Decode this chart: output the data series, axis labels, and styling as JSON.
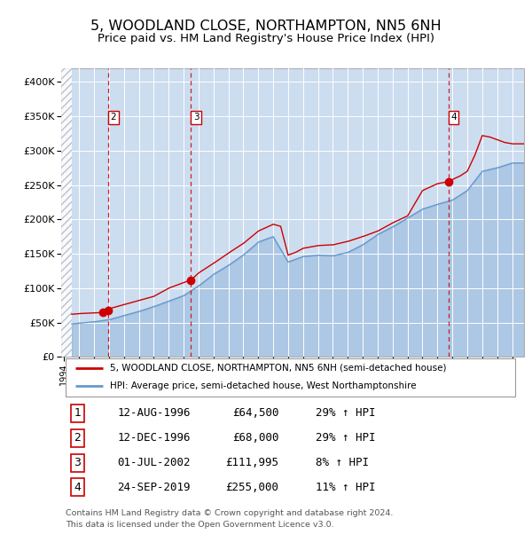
{
  "title": "5, WOODLAND CLOSE, NORTHAMPTON, NN5 6NH",
  "subtitle": "Price paid vs. HM Land Registry's House Price Index (HPI)",
  "title_fontsize": 11.5,
  "subtitle_fontsize": 9.5,
  "background_color": "#ccddf0",
  "legend_label_red": "5, WOODLAND CLOSE, NORTHAMPTON, NN5 6NH (semi-detached house)",
  "legend_label_blue": "HPI: Average price, semi-detached house, West Northamptonshire",
  "footer": "Contains HM Land Registry data © Crown copyright and database right 2024.\nThis data is licensed under the Open Government Licence v3.0.",
  "transactions": [
    {
      "num": 1,
      "date": "12-AUG-1996",
      "price": "£64,500",
      "hpi": "29% ↑ HPI",
      "year": 1996.62,
      "value": 64500
    },
    {
      "num": 2,
      "date": "12-DEC-1996",
      "price": "£68,000",
      "hpi": "29% ↑ HPI",
      "year": 1996.95,
      "value": 68000
    },
    {
      "num": 3,
      "date": "01-JUL-2002",
      "price": "£111,995",
      "hpi": "8% ↑ HPI",
      "year": 2002.5,
      "value": 111995
    },
    {
      "num": 4,
      "date": "24-SEP-2019",
      "price": "£255,000",
      "hpi": "11% ↑ HPI",
      "year": 2019.73,
      "value": 255000
    }
  ],
  "dashed_lines": [
    {
      "x": 1996.95,
      "label": "2"
    },
    {
      "x": 2002.5,
      "label": "3"
    },
    {
      "x": 2019.73,
      "label": "4"
    }
  ],
  "ylim": [
    0,
    420000
  ],
  "xlim_start": 1993.8,
  "xlim_end": 2024.8,
  "yticks": [
    0,
    50000,
    100000,
    150000,
    200000,
    250000,
    300000,
    350000,
    400000
  ],
  "ytick_labels": [
    "£0",
    "£50K",
    "£100K",
    "£150K",
    "£200K",
    "£250K",
    "£300K",
    "£350K",
    "£400K"
  ],
  "red_color": "#cc0000",
  "blue_color": "#6699cc",
  "hpi_ctrl_years": [
    1993,
    1994,
    1995,
    1996,
    1997,
    1998,
    1999,
    2000,
    2001,
    2002,
    2003,
    2004,
    2005,
    2006,
    2007,
    2008,
    2009,
    2010,
    2011,
    2012,
    2013,
    2014,
    2015,
    2016,
    2017,
    2018,
    2019,
    2020,
    2021,
    2022,
    2023,
    2024
  ],
  "hpi_ctrl_vals": [
    46000,
    47000,
    49000,
    51000,
    54000,
    60000,
    66000,
    73000,
    81000,
    89000,
    103000,
    120000,
    133000,
    148000,
    167000,
    175000,
    138000,
    146000,
    148000,
    147000,
    152000,
    163000,
    178000,
    189000,
    202000,
    215000,
    222000,
    228000,
    242000,
    270000,
    275000,
    282000
  ],
  "prop_ctrl_years": [
    1993,
    1994,
    1995,
    1996.0,
    1996.62,
    1996.95,
    1997,
    1998,
    1999,
    2000,
    2001,
    2002.5,
    2003,
    2004,
    2005,
    2006,
    2007,
    2008,
    2008.5,
    2009,
    2009.5,
    2010,
    2011,
    2012,
    2013,
    2014,
    2015,
    2016,
    2017,
    2018,
    2019.0,
    2019.73,
    2020,
    2020.5,
    2021,
    2021.5,
    2022,
    2022.5,
    2023,
    2023.5,
    2024
  ],
  "prop_ctrl_vals": [
    60000,
    61000,
    63000,
    64000,
    64500,
    68000,
    70000,
    76000,
    82000,
    88000,
    100000,
    111995,
    122000,
    136000,
    151000,
    165000,
    183000,
    193000,
    190000,
    148000,
    152000,
    158000,
    162000,
    163000,
    168000,
    175000,
    183000,
    195000,
    205000,
    242000,
    252000,
    255000,
    258000,
    263000,
    270000,
    293000,
    322000,
    320000,
    316000,
    312000,
    310000
  ]
}
